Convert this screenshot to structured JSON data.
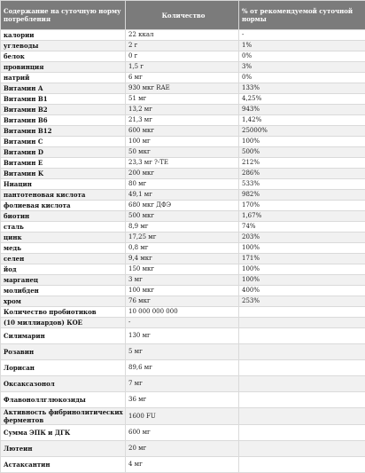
{
  "table": {
    "headers": [
      "Содержание на суточную норму потребления",
      "Количество",
      "% от рекомендуемой суточной нормы"
    ],
    "rows": [
      {
        "name": "калории",
        "amount": "22 ккал",
        "percent": "-"
      },
      {
        "name": "углеводы",
        "amount": "2 г",
        "percent": "1%"
      },
      {
        "name": "белок",
        "amount": "0 г",
        "percent": "0%"
      },
      {
        "name": "провинция",
        "amount": "1,5 г",
        "percent": "3%"
      },
      {
        "name": "натрий",
        "amount": "6 мг",
        "percent": "0%"
      },
      {
        "name": "Витамин А",
        "amount": "930 мкг RAE",
        "percent": "133%"
      },
      {
        "name": "Витамин B1",
        "amount": "51 мг",
        "percent": "4,25%"
      },
      {
        "name": "Витамин B2",
        "amount": "13,2 мг",
        "percent": "943%"
      },
      {
        "name": "Витамин B6",
        "amount": "21,3 мг",
        "percent": "1,42%"
      },
      {
        "name": "Витамин B12",
        "amount": "600 мкг",
        "percent": "25000%"
      },
      {
        "name": "Витамин C",
        "amount": "100 мг",
        "percent": "100%"
      },
      {
        "name": "Витамин D",
        "amount": "50 мкг",
        "percent": "500%"
      },
      {
        "name": "Витамин E",
        "amount": "23,3 мг ?-TE",
        "percent": "212%"
      },
      {
        "name": "Витамин K",
        "amount": "200 мкг",
        "percent": "286%"
      },
      {
        "name": "Ниацин",
        "amount": "80 мг",
        "percent": "533%"
      },
      {
        "name": "пантотеновая кислота",
        "amount": "49,1 мг",
        "percent": "982%"
      },
      {
        "name": "фолиевая кислота",
        "amount": "680 мкг ДФЭ",
        "percent": "170%"
      },
      {
        "name": "биотин",
        "amount": "500 мкг",
        "percent": "1,67%"
      },
      {
        "name": "сталь",
        "amount": "8,9 мг",
        "percent": "74%"
      },
      {
        "name": "цинк",
        "amount": "17,25 мг",
        "percent": "203%"
      },
      {
        "name": "медь",
        "amount": "0,8 мг",
        "percent": "100%"
      },
      {
        "name": "селен",
        "amount": "9,4 мкг",
        "percent": "171%"
      },
      {
        "name": "йод",
        "amount": "150 мкг",
        "percent": "100%"
      },
      {
        "name": "марганец",
        "amount": "3 мг",
        "percent": "100%"
      },
      {
        "name": "молибден",
        "amount": "100 мкг",
        "percent": "400%"
      },
      {
        "name": "хром",
        "amount": "76 мкг",
        "percent": "253%"
      }
    ],
    "probiotics": {
      "name_line1": "Количество пробиотиков",
      "name_line2": "(10 миллиардов) КОЕ",
      "amount_line1": "10 000 000 000",
      "amount_line2": "-"
    },
    "rows_tail": [
      {
        "name": "Силимарин",
        "amount": "130 мг",
        "percent": "",
        "tall": true
      },
      {
        "name": "Розавин",
        "amount": "5 мг",
        "percent": "",
        "tall": true
      },
      {
        "name": "Лорисан",
        "amount": "89,6 мг",
        "percent": "",
        "tall": true
      },
      {
        "name": "Оксаксазонол",
        "amount": "7 мг",
        "percent": "",
        "tall": true
      },
      {
        "name": "Флавоноллглюкозиды",
        "amount": "36 мг",
        "percent": "",
        "tall": true
      },
      {
        "name": "Активность фибринолитических ферментов",
        "amount": "1600 FU",
        "percent": "",
        "tall": true
      },
      {
        "name": "Сумма ЭПК и ДГК",
        "amount": "600 мг",
        "percent": "",
        "tall": true
      },
      {
        "name": "Лютеин",
        "amount": "20 мг",
        "percent": "",
        "tall": true
      },
      {
        "name": "Астаксантин",
        "amount": "4 мг",
        "percent": "",
        "tall": true
      }
    ]
  }
}
